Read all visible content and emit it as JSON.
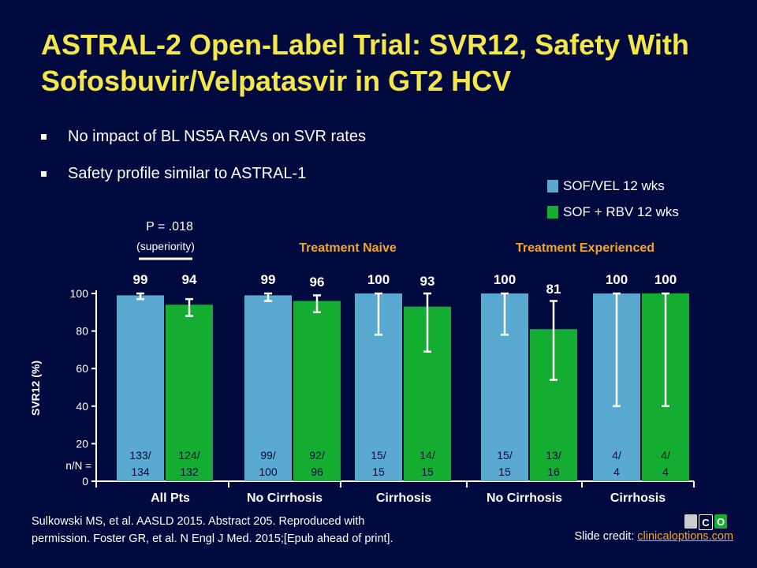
{
  "title": "ASTRAL-2 Open-Label Trial: SVR12, Safety With Sofosbuvir/Velpatasvir in GT2 HCV",
  "bullets": [
    "No impact of BL NS5A RAVs on SVR rates",
    "Safety profile similar to ASTRAL-1"
  ],
  "colors": {
    "sofvel": "#5aa9d1",
    "sofrbv": "#14ad32",
    "title": "#f5e64a",
    "group": "#f5a623",
    "bg": "#000a3f"
  },
  "pvalue": {
    "label": "P = .018",
    "sub": "(superiority)"
  },
  "footer": {
    "citation_line1": "Sulkowski MS, et al. AASLD 2015. Abstract 205. Reproduced with",
    "citation_line2": "permission. Foster GR, et al. N Engl J Med. 2015;[Epub ahead of print].",
    "credit_label": "Slide credit: ",
    "credit_link": "clinicaloptions.com",
    "logo_letters": [
      "C",
      "C",
      "O"
    ]
  },
  "chart_data": {
    "type": "bar",
    "ylabel": "SVR12 (%)",
    "ylim": [
      0,
      100
    ],
    "yticks": [
      0,
      20,
      40,
      60,
      80,
      100
    ],
    "nN_label": "n/N =",
    "categories": [
      "All Pts",
      "No Cirrhosis",
      "Cirrhosis",
      "No Cirrhosis",
      "Cirrhosis"
    ],
    "group_labels": [
      {
        "label": "Treatment Naive",
        "spans": [
          1,
          2
        ]
      },
      {
        "label": "Treatment Experienced",
        "spans": [
          3,
          4
        ]
      }
    ],
    "series": [
      {
        "name": "SOF/VEL 12 wks",
        "values": [
          99,
          99,
          100,
          100,
          100
        ],
        "ci_low": [
          97,
          96,
          78,
          78,
          40
        ],
        "ci_high": [
          100,
          100,
          100,
          100,
          100
        ],
        "nN": [
          [
            "133/",
            "134"
          ],
          [
            "99/",
            "100"
          ],
          [
            "15/",
            "15"
          ],
          [
            "15/",
            "15"
          ],
          [
            "4/",
            "4"
          ]
        ]
      },
      {
        "name": "SOF + RBV 12 wks",
        "values": [
          94,
          96,
          93,
          81,
          100
        ],
        "ci_low": [
          88,
          90,
          69,
          54,
          40
        ],
        "ci_high": [
          97,
          99,
          100,
          96,
          100
        ],
        "nN": [
          [
            "124/",
            "132"
          ],
          [
            "92/",
            "96"
          ],
          [
            "14/",
            "15"
          ],
          [
            "13/",
            "16"
          ],
          [
            "4/",
            "4"
          ]
        ]
      }
    ]
  }
}
